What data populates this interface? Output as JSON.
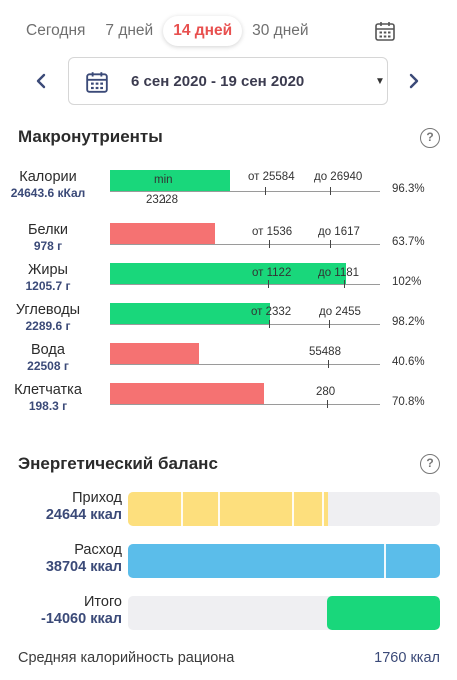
{
  "tabs": [
    {
      "label": "Сегодня",
      "active": false
    },
    {
      "label": "7 дней",
      "active": false
    },
    {
      "label": "14 дней",
      "active": true
    },
    {
      "label": "30 дней",
      "active": false
    }
  ],
  "date_range": {
    "text": "6 сен 2020 - 19 сен 2020"
  },
  "macros": {
    "title": "Макронутриенты",
    "help": "?",
    "rows": [
      {
        "name": "Калории",
        "value": "24643.6 кКал",
        "bar_color": "#19d77b",
        "bar_label": "min",
        "ticks": [
          {
            "label": "от 25584"
          },
          {
            "label": "до 26940"
          },
          {
            "label": "23228"
          }
        ],
        "percent": "96.3%",
        "fill_fraction": 0.963
      },
      {
        "name": "Белки",
        "value": "978 г",
        "bar_color": "#f57272",
        "ticks": [
          {
            "label": "от 1536"
          },
          {
            "label": "до 1617"
          }
        ],
        "percent": "63.7%",
        "fill_fraction": 0.637
      },
      {
        "name": "Жиры",
        "value": "1205.7 г",
        "bar_color": "#19d77b",
        "ticks": [
          {
            "label": "от 1122"
          },
          {
            "label": "до 1181"
          }
        ],
        "percent": "102%",
        "fill_fraction": 1.02
      },
      {
        "name": "Углеводы",
        "value": "2289.6 г",
        "bar_color": "#19d77b",
        "ticks": [
          {
            "label": "от 2332"
          },
          {
            "label": "до 2455"
          }
        ],
        "percent": "98.2%",
        "fill_fraction": 0.982
      },
      {
        "name": "Вода",
        "value": "22508 г",
        "bar_color": "#f57272",
        "ticks": [
          {
            "label": "55488"
          }
        ],
        "percent": "40.6%",
        "fill_fraction": 0.406
      },
      {
        "name": "Клетчатка",
        "value": "198.3 г",
        "bar_color": "#f57272",
        "ticks": [
          {
            "label": "280"
          }
        ],
        "percent": "70.8%",
        "fill_fraction": 0.708
      }
    ]
  },
  "energy": {
    "title": "Энергетический баланс",
    "help": "?",
    "rows": [
      {
        "label": "Приход",
        "value": "24644 ккал",
        "color": "#fddf7d"
      },
      {
        "label": "Расход",
        "value": "38704 ккал",
        "color": "#5bbdea"
      },
      {
        "label": "Итого",
        "value": "-14060 ккал",
        "color": "#19d77b"
      }
    ]
  },
  "average": {
    "label": "Средняя калорийность рациона",
    "value": "1760 ккал"
  }
}
